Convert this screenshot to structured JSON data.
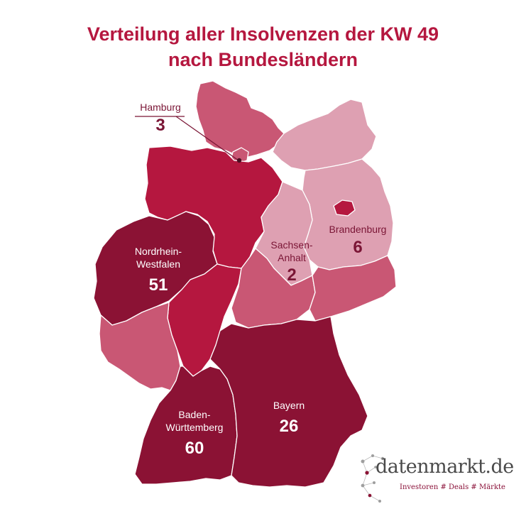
{
  "title": {
    "line1": "Verteilung aller Insolvenzen der KW 49",
    "line2": "nach Bundesländern"
  },
  "colors": {
    "darkest": "#8b1234",
    "dark": "#b5173f",
    "medium": "#c95774",
    "light": "#dea0b2",
    "title": "#b5173f"
  },
  "labels": {
    "hamburg": {
      "name": "Hamburg",
      "value": "3"
    },
    "nrw": {
      "name1": "Nordrhein-",
      "name2": "Westfalen",
      "value": "51"
    },
    "sachsen_anhalt": {
      "name1": "Sachsen-",
      "name2": "Anhalt",
      "value": "2"
    },
    "brandenburg": {
      "name": "Brandenburg",
      "value": "6"
    },
    "bayern": {
      "name": "Bayern",
      "value": "26"
    },
    "bw": {
      "name1": "Baden-",
      "name2": "Württemberg",
      "value": "60"
    }
  },
  "logo": {
    "word": "datenmarkt.de",
    "tagline": "Investoren # Deals # Märkte"
  }
}
